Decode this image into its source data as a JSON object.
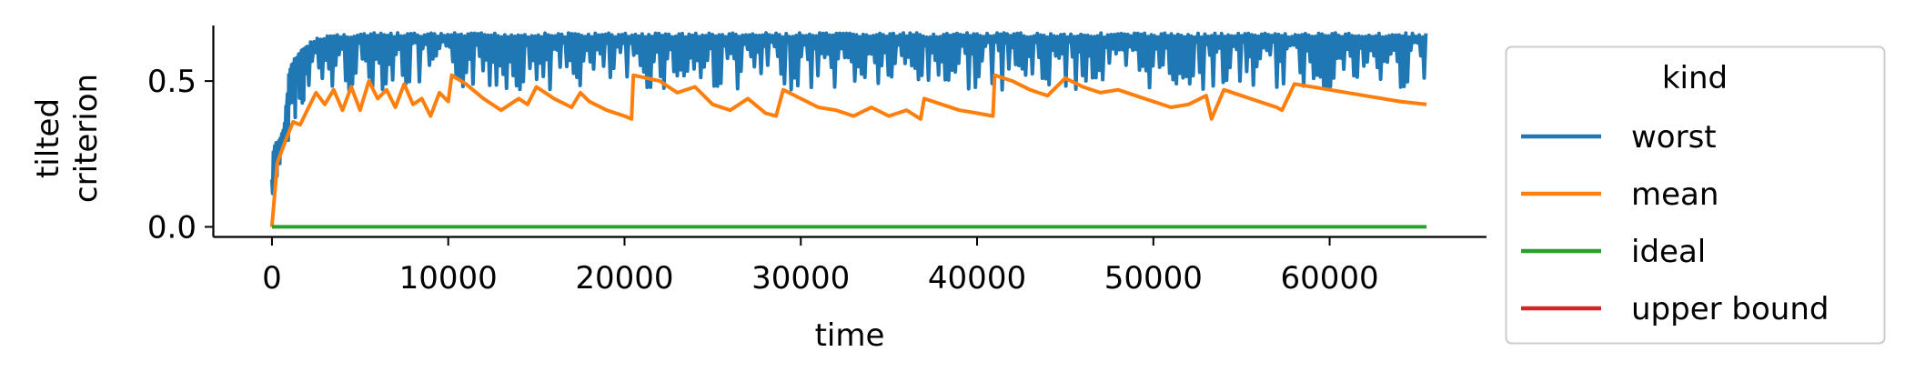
{
  "chart_data": {
    "type": "line",
    "xlabel": "time",
    "ylabel_lines": [
      "tilted",
      "criterion"
    ],
    "xlim": [
      -3300,
      68900
    ],
    "ylim": [
      -0.033,
      0.7
    ],
    "xticks": [
      0,
      10000,
      20000,
      30000,
      40000,
      50000,
      60000
    ],
    "xtick_labels": [
      "0",
      "10000",
      "20000",
      "30000",
      "40000",
      "50000",
      "60000"
    ],
    "yticks": [
      0.0,
      0.5
    ],
    "ytick_labels": [
      "0.0",
      "0.5"
    ],
    "grid": false,
    "legend": {
      "title": "kind",
      "placement": "outside right"
    },
    "series": [
      {
        "name": "worst",
        "color": "#1f77b4",
        "envelope_x": [
          0,
          100,
          400,
          700,
          1000,
          1300,
          1600,
          2000,
          3000,
          5000,
          8000,
          10000,
          15000,
          20000,
          25000,
          30000,
          35000,
          40000,
          45000,
          50000,
          55000,
          60000,
          65500
        ],
        "envelope_upper": [
          0.17,
          0.28,
          0.3,
          0.35,
          0.55,
          0.58,
          0.6,
          0.63,
          0.66,
          0.665,
          0.665,
          0.665,
          0.665,
          0.665,
          0.665,
          0.665,
          0.665,
          0.665,
          0.665,
          0.665,
          0.665,
          0.665,
          0.665
        ],
        "envelope_lower": [
          0.05,
          0.15,
          0.22,
          0.3,
          0.33,
          0.4,
          0.44,
          0.45,
          0.48,
          0.5,
          0.5,
          0.5,
          0.5,
          0.5,
          0.5,
          0.5,
          0.5,
          0.5,
          0.5,
          0.5,
          0.5,
          0.5,
          0.5
        ]
      },
      {
        "name": "mean",
        "color": "#ff7f0e",
        "x": [
          0,
          300,
          800,
          1200,
          1600,
          2000,
          2500,
          3000,
          3500,
          4000,
          4500,
          5000,
          5500,
          6000,
          6500,
          7000,
          7500,
          8000,
          8500,
          9000,
          9500,
          10000,
          10200,
          11000,
          12000,
          13000,
          14000,
          14500,
          15000,
          16000,
          17000,
          17500,
          18000,
          19000,
          20000,
          20400,
          20500,
          22000,
          23000,
          24000,
          25000,
          26000,
          27000,
          28000,
          28600,
          29000,
          30000,
          31000,
          32000,
          33000,
          34000,
          35000,
          36000,
          36800,
          37000,
          38000,
          39000,
          40000,
          40900,
          41000,
          42000,
          43000,
          44000,
          45000,
          46000,
          47000,
          48000,
          49000,
          50000,
          51000,
          52000,
          53000,
          53300,
          54000,
          55000,
          56000,
          57000,
          57300,
          58000,
          60000,
          62000,
          64000,
          65500
        ],
        "y": [
          0.0,
          0.22,
          0.3,
          0.36,
          0.35,
          0.4,
          0.46,
          0.42,
          0.47,
          0.4,
          0.48,
          0.4,
          0.5,
          0.44,
          0.47,
          0.41,
          0.49,
          0.42,
          0.44,
          0.38,
          0.46,
          0.43,
          0.52,
          0.49,
          0.44,
          0.4,
          0.44,
          0.42,
          0.48,
          0.44,
          0.41,
          0.46,
          0.43,
          0.4,
          0.38,
          0.37,
          0.52,
          0.5,
          0.46,
          0.48,
          0.42,
          0.4,
          0.44,
          0.39,
          0.38,
          0.47,
          0.44,
          0.41,
          0.4,
          0.38,
          0.41,
          0.38,
          0.4,
          0.37,
          0.44,
          0.42,
          0.4,
          0.39,
          0.38,
          0.52,
          0.5,
          0.47,
          0.45,
          0.51,
          0.48,
          0.46,
          0.47,
          0.45,
          0.43,
          0.41,
          0.42,
          0.45,
          0.37,
          0.47,
          0.45,
          0.43,
          0.41,
          0.4,
          0.49,
          0.47,
          0.45,
          0.43,
          0.42
        ]
      },
      {
        "name": "ideal",
        "color": "#2ca02c",
        "x": [
          0,
          65500
        ],
        "y": [
          0.0,
          0.0
        ]
      },
      {
        "name": "upper bound",
        "color": "#d62728",
        "x": [],
        "y": []
      }
    ]
  }
}
